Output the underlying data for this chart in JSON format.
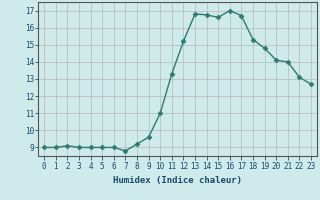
{
  "x": [
    0,
    1,
    2,
    3,
    4,
    5,
    6,
    7,
    8,
    9,
    10,
    11,
    12,
    13,
    14,
    15,
    16,
    17,
    18,
    19,
    20,
    21,
    22,
    23
  ],
  "y": [
    9.0,
    9.0,
    9.1,
    9.0,
    9.0,
    9.0,
    9.0,
    8.8,
    9.2,
    9.6,
    11.0,
    13.3,
    15.2,
    16.8,
    16.75,
    16.6,
    17.0,
    16.7,
    15.3,
    14.8,
    14.1,
    14.0,
    13.1,
    12.7
  ],
  "line_color": "#2d7d6e",
  "marker": "D",
  "marker_size": 2.5,
  "bg_color": "#ceeaea",
  "grid_color": "#b8b8b8",
  "xlabel": "Humidex (Indice chaleur)",
  "xlim": [
    -0.5,
    23.5
  ],
  "ylim": [
    8.5,
    17.5
  ],
  "yticks": [
    9,
    10,
    11,
    12,
    13,
    14,
    15,
    16,
    17
  ],
  "xticks": [
    0,
    1,
    2,
    3,
    4,
    5,
    6,
    7,
    8,
    9,
    10,
    11,
    12,
    13,
    14,
    15,
    16,
    17,
    18,
    19,
    20,
    21,
    22,
    23
  ],
  "tick_fontsize": 5.5,
  "xlabel_fontsize": 6.5,
  "line_width": 1.0,
  "label_color": "#1a4a6e"
}
